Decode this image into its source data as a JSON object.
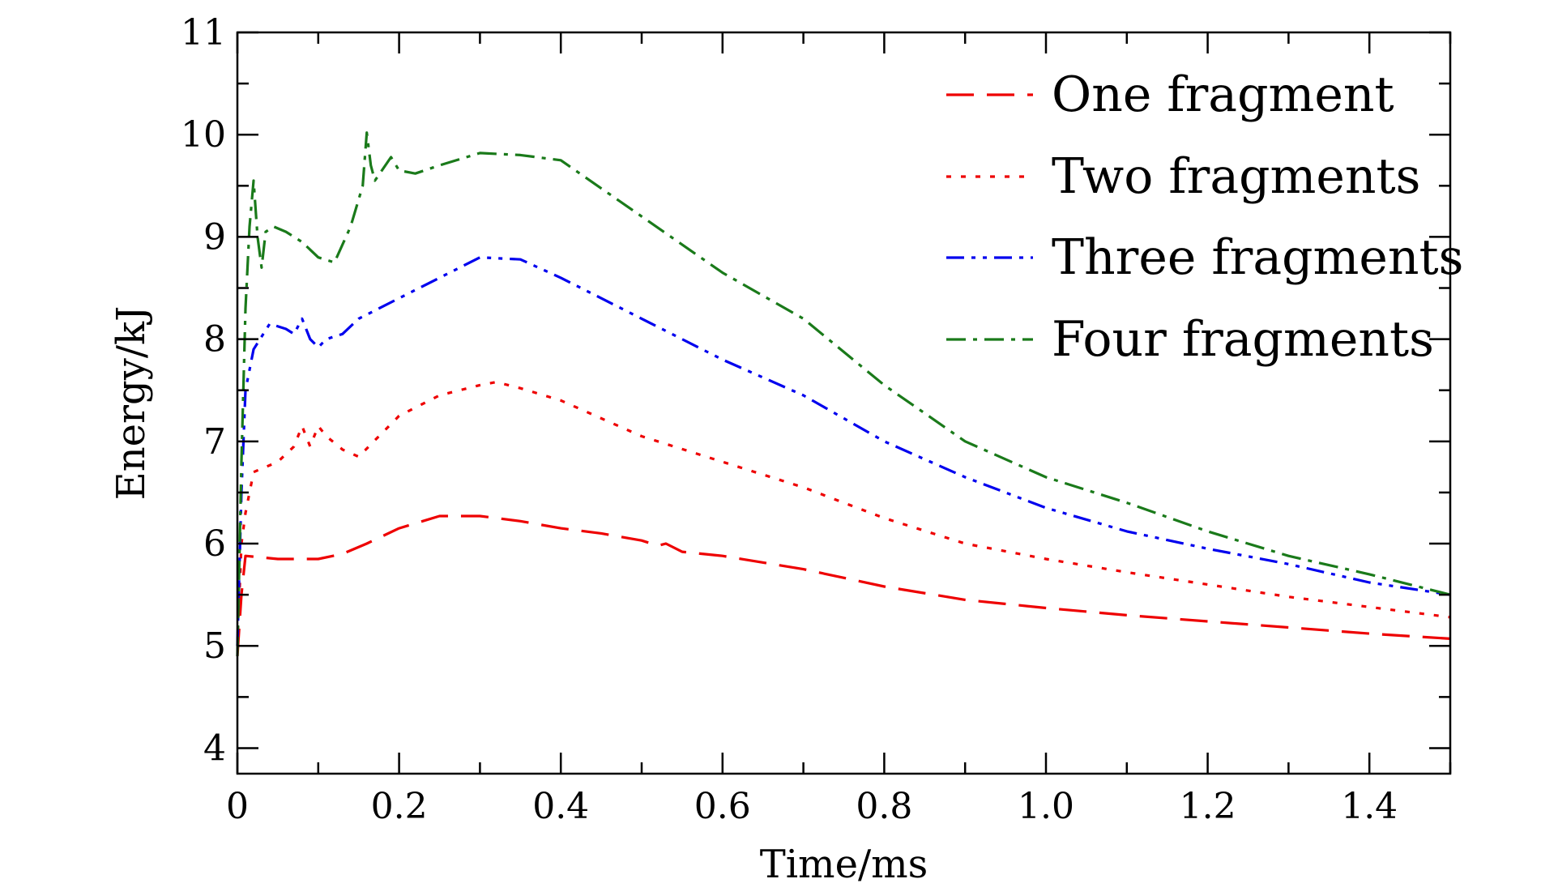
{
  "chart_data": {
    "type": "line",
    "title": "",
    "xlabel": "Time/ms",
    "ylabel": "Energy/kJ",
    "xlim": [
      0,
      1.5
    ],
    "ylim": [
      3.75,
      11
    ],
    "xticks": [
      0,
      0.2,
      0.4,
      0.6,
      0.8,
      1.0,
      1.2,
      1.4
    ],
    "xtick_labels": [
      "0",
      "0.2",
      "0.4",
      "0.6",
      "0.8",
      "1.0",
      "1.2",
      "1.4"
    ],
    "yticks": [
      4,
      5,
      6,
      7,
      8,
      9,
      10,
      11
    ],
    "ytick_labels": [
      "4",
      "5",
      "6",
      "7",
      "8",
      "9",
      "10",
      "11"
    ],
    "grid": false,
    "legend_position": "top-right",
    "series": [
      {
        "name": "One fragment",
        "color": "#ee0000",
        "style": "dashed",
        "x": [
          0,
          0.005,
          0.01,
          0.05,
          0.1,
          0.13,
          0.16,
          0.2,
          0.25,
          0.3,
          0.35,
          0.4,
          0.45,
          0.5,
          0.52,
          0.53,
          0.55,
          0.6,
          0.7,
          0.8,
          0.9,
          1.0,
          1.1,
          1.2,
          1.3,
          1.4,
          1.5
        ],
        "y": [
          4.9,
          5.5,
          5.88,
          5.85,
          5.85,
          5.9,
          6.0,
          6.15,
          6.27,
          6.27,
          6.22,
          6.15,
          6.1,
          6.03,
          5.98,
          6.0,
          5.92,
          5.88,
          5.75,
          5.58,
          5.45,
          5.37,
          5.3,
          5.24,
          5.18,
          5.12,
          5.07
        ]
      },
      {
        "name": "Two fragments",
        "color": "#ee0000",
        "style": "dotted",
        "x": [
          0,
          0.005,
          0.01,
          0.02,
          0.05,
          0.07,
          0.08,
          0.09,
          0.1,
          0.11,
          0.13,
          0.15,
          0.2,
          0.25,
          0.3,
          0.32,
          0.35,
          0.4,
          0.5,
          0.6,
          0.7,
          0.8,
          0.9,
          1.0,
          1.1,
          1.2,
          1.3,
          1.4,
          1.5
        ],
        "y": [
          5.0,
          6.0,
          6.3,
          6.7,
          6.8,
          6.95,
          7.15,
          6.95,
          7.15,
          7.05,
          6.92,
          6.85,
          7.25,
          7.45,
          7.55,
          7.58,
          7.52,
          7.4,
          7.05,
          6.8,
          6.55,
          6.25,
          6.0,
          5.85,
          5.72,
          5.6,
          5.48,
          5.38,
          5.28
        ]
      },
      {
        "name": "Three fragments",
        "color": "#0000ee",
        "style": "dash-dot-dot",
        "x": [
          0,
          0.005,
          0.01,
          0.02,
          0.04,
          0.06,
          0.07,
          0.08,
          0.085,
          0.09,
          0.1,
          0.11,
          0.13,
          0.15,
          0.2,
          0.25,
          0.3,
          0.35,
          0.4,
          0.5,
          0.6,
          0.7,
          0.8,
          0.9,
          1.0,
          1.1,
          1.2,
          1.3,
          1.4,
          1.5
        ],
        "y": [
          5.0,
          6.5,
          7.5,
          7.9,
          8.15,
          8.1,
          8.05,
          8.2,
          8.1,
          8.0,
          7.92,
          8.0,
          8.05,
          8.2,
          8.4,
          8.6,
          8.8,
          8.78,
          8.6,
          8.2,
          7.8,
          7.45,
          7.0,
          6.65,
          6.35,
          6.12,
          5.95,
          5.8,
          5.62,
          5.5
        ]
      },
      {
        "name": "Four fragments",
        "color": "#1a7a1a",
        "style": "dash-dot",
        "x": [
          0,
          0.005,
          0.01,
          0.015,
          0.02,
          0.025,
          0.03,
          0.035,
          0.045,
          0.06,
          0.08,
          0.1,
          0.12,
          0.14,
          0.155,
          0.16,
          0.165,
          0.17,
          0.19,
          0.2,
          0.22,
          0.25,
          0.3,
          0.35,
          0.4,
          0.5,
          0.6,
          0.7,
          0.8,
          0.9,
          1.0,
          1.1,
          1.2,
          1.3,
          1.4,
          1.5
        ],
        "y": [
          4.9,
          6.8,
          8.3,
          9.1,
          9.55,
          9.0,
          8.7,
          9.05,
          9.1,
          9.05,
          8.95,
          8.8,
          8.75,
          9.1,
          9.5,
          10.02,
          9.7,
          9.55,
          9.78,
          9.65,
          9.62,
          9.7,
          9.82,
          9.8,
          9.75,
          9.2,
          8.65,
          8.2,
          7.55,
          7.0,
          6.65,
          6.4,
          6.12,
          5.88,
          5.7,
          5.5
        ]
      }
    ]
  }
}
